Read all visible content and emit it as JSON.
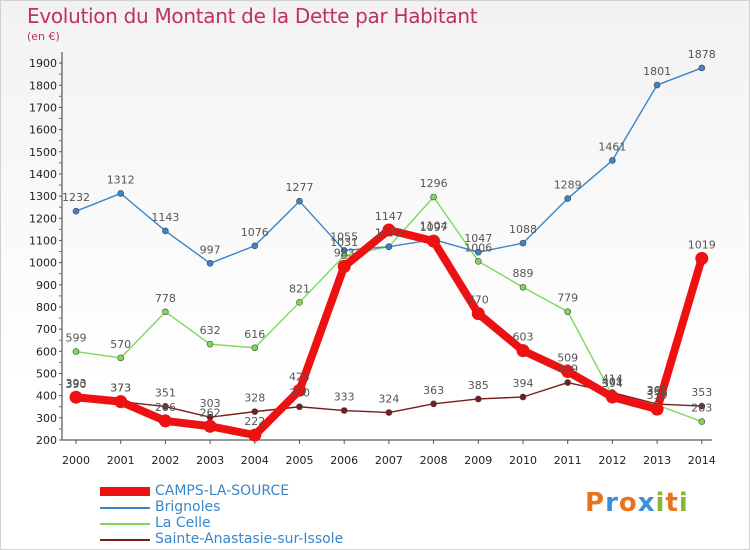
{
  "header": {
    "title": "Evolution du Montant de la Dette par Habitant",
    "unit": "(en €)"
  },
  "logo": {
    "letters": [
      "P",
      "r",
      "o",
      "x",
      "i",
      "t",
      "i"
    ],
    "colors": [
      "#e8731c",
      "#3a8fd6",
      "#e8731c",
      "#3a8fd6",
      "#8ab832",
      "#e8731c",
      "#8ab832"
    ]
  },
  "chart_data": {
    "type": "line",
    "title": "Evolution du Montant de la Dette par Habitant",
    "ylabel": "(en €)",
    "xlabel": "",
    "ylim": [
      200,
      1950
    ],
    "yticks": [
      200,
      300,
      400,
      500,
      600,
      700,
      800,
      900,
      1000,
      1100,
      1200,
      1300,
      1400,
      1500,
      1600,
      1700,
      1800,
      1900
    ],
    "x": [
      "2000",
      "2001",
      "2002",
      "2003",
      "2004",
      "2005",
      "2006",
      "2007",
      "2008",
      "2009",
      "2010",
      "2011",
      "2012",
      "2013",
      "2014"
    ],
    "grid": false,
    "legend": "bottom-left",
    "series": [
      {
        "name": "Sainte-Anastasie-sur-Issole",
        "color": "#7a1c1c",
        "values": [
          390,
          373,
          351,
          303,
          328,
          350,
          333,
          324,
          363,
          385,
          394,
          459,
          414,
          362,
          353
        ]
      },
      {
        "name": "La Celle",
        "color": "#7ed85a",
        "values": [
          599,
          570,
          778,
          632,
          616,
          821,
          1031,
          1072,
          1296,
          1006,
          889,
          779,
          401,
          358,
          283
        ]
      },
      {
        "name": "Brignoles",
        "color": "#3a86c8",
        "values": [
          1232,
          1312,
          1143,
          997,
          1076,
          1277,
          1055,
          1072,
          1104,
          1047,
          1088,
          1289,
          1461,
          1801,
          1878
        ]
      },
      {
        "name": "CAMPS-LA-SOURCE",
        "color": "#ee1111",
        "values": [
          393,
          373,
          286,
          262,
          222,
          424,
          983,
          1147,
          1097,
          770,
          603,
          509,
          394,
          339,
          1019
        ]
      }
    ],
    "data_labels": [
      {
        "series": "CAMPS-LA-SOURCE",
        "values": [
          "393",
          "373",
          "286",
          "262",
          "222",
          "424",
          "983",
          "1147",
          "1097",
          "770",
          "603",
          "509",
          "394",
          "339",
          "1019"
        ]
      },
      {
        "series": "Brignoles",
        "values": [
          "1232",
          "1312",
          "1143",
          "997",
          "1076",
          "1277",
          "1055",
          "1072",
          "1104",
          "1047",
          "1088",
          "1289",
          "1461",
          "1801",
          "1878"
        ]
      },
      {
        "series": "La Celle",
        "values": [
          "599",
          "570",
          "778",
          "632",
          "616",
          "821",
          "1031",
          "1072",
          "1296",
          "1006",
          "889",
          "779",
          "401",
          "358",
          "283"
        ]
      },
      {
        "series": "Sainte-Anastasie-sur-Issole",
        "values": [
          "390",
          "373",
          "351",
          "303",
          "328",
          "350",
          "333",
          "324",
          "363",
          "385",
          "394",
          "459",
          "414",
          "362",
          "353"
        ]
      }
    ]
  },
  "legend": {
    "items": [
      {
        "label": "CAMPS-LA-SOURCE",
        "color": "#ee1111",
        "text_color": "#3a86c8",
        "thick": true
      },
      {
        "label": "Brignoles",
        "color": "#3a86c8",
        "text_color": "#3a86c8",
        "thick": false
      },
      {
        "label": "La Celle",
        "color": "#7ed85a",
        "text_color": "#3a86c8",
        "thick": false
      },
      {
        "label": "Sainte-Anastasie-sur-Issole",
        "color": "#7a1c1c",
        "text_color": "#3a86c8",
        "thick": false
      }
    ]
  }
}
